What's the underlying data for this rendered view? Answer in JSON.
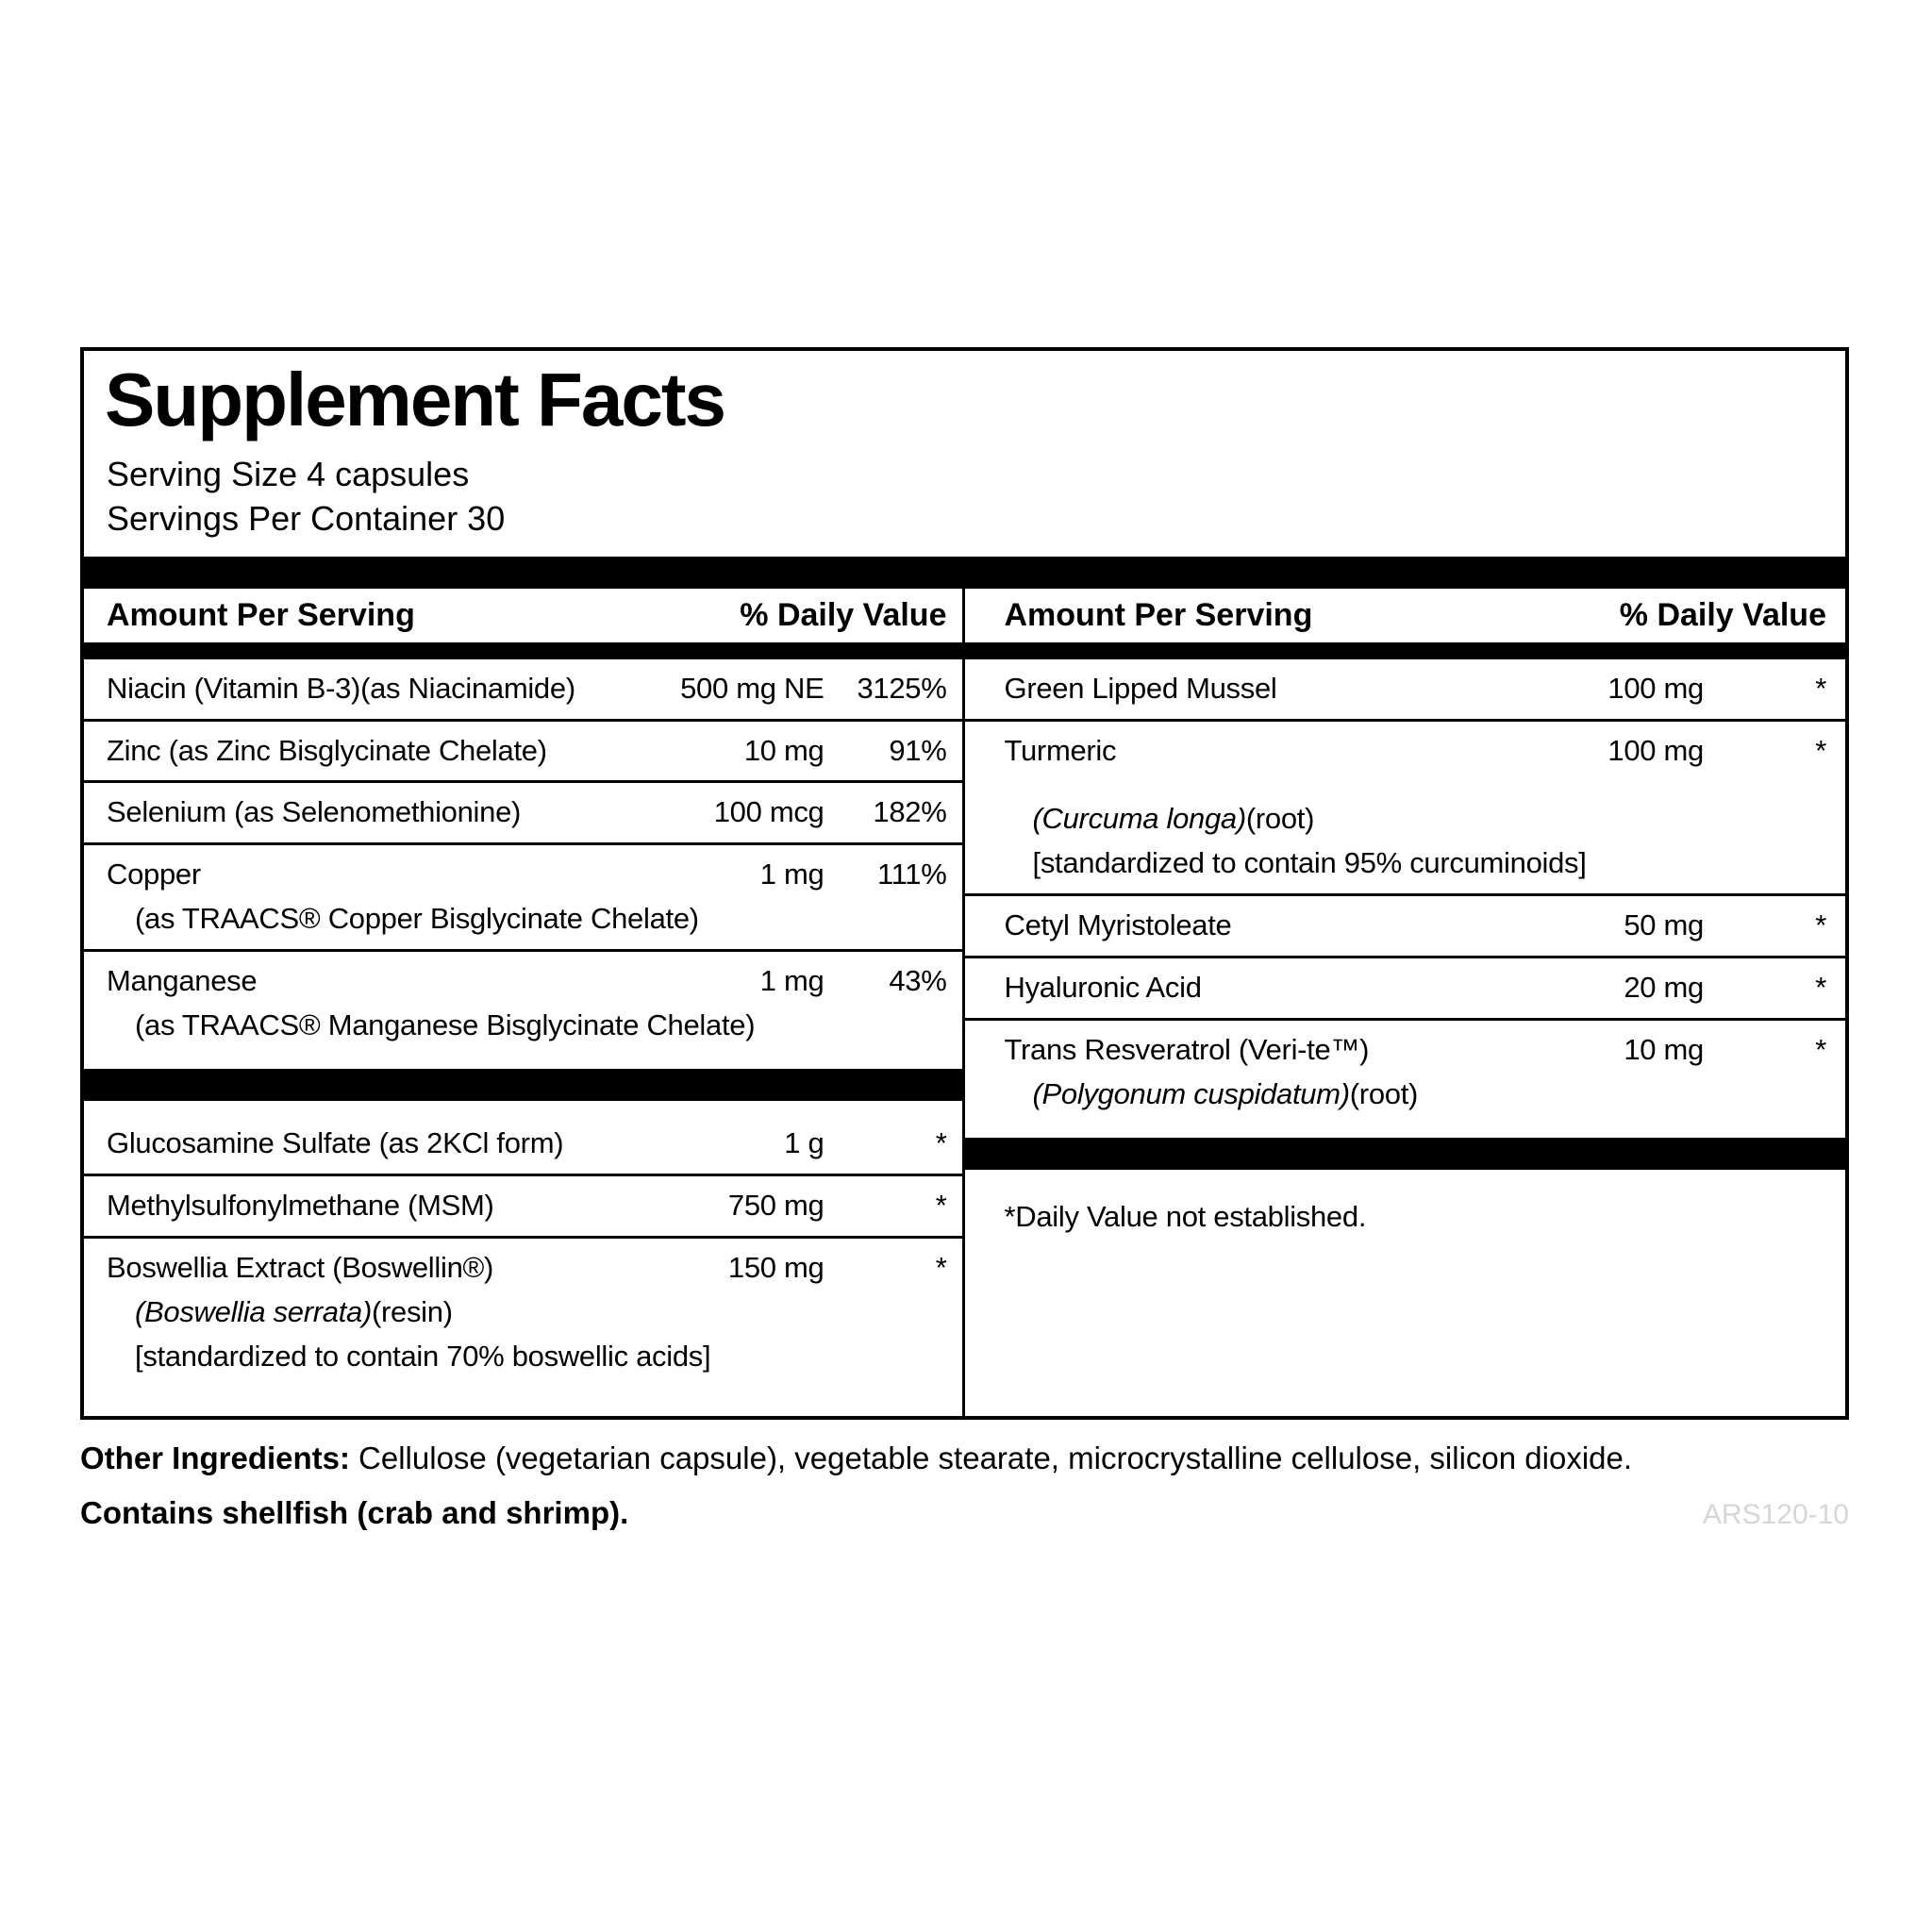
{
  "panel": {
    "title": "Supplement Facts",
    "serving_size": "Serving Size 4 capsules",
    "servings_per_container": "Servings Per Container 30",
    "left": {
      "header_amount": "Amount Per Serving",
      "header_dv": "% Daily Value",
      "rows": [
        {
          "name": "Niacin (Vitamin B-3)(as Niacinamide)",
          "amount": "500 mg NE",
          "dv": "3125%"
        },
        {
          "name": "Zinc (as Zinc Bisglycinate Chelate)",
          "amount": "10 mg",
          "dv": "91%"
        },
        {
          "name": "Selenium (as Selenomethionine)",
          "amount": "100 mcg",
          "dv": "182%"
        },
        {
          "name": "Copper",
          "amount": "1 mg",
          "dv": "111%",
          "sub1": "(as TRAACS® Copper Bisglycinate Chelate)"
        },
        {
          "name": "Manganese",
          "amount": "1 mg",
          "dv": "43%",
          "sub1": "(as TRAACS® Manganese Bisglycinate Chelate)"
        },
        {
          "name": "Glucosamine Sulfate (as 2KCl form)",
          "amount": "1 g",
          "dv": "*"
        },
        {
          "name": "Methylsulfonylmethane (MSM)",
          "amount": "750 mg",
          "dv": "*"
        },
        {
          "name": "Boswellia Extract (Boswellin®)",
          "amount": "150 mg",
          "dv": "*",
          "sub_italic": "(Boswellia serrata)",
          "sub_plain": "(resin)",
          "sub2": "[standardized to contain 70% boswellic acids]"
        }
      ]
    },
    "right": {
      "header_amount": "Amount Per Serving",
      "header_dv": "% Daily Value",
      "rows": [
        {
          "name": "Green Lipped Mussel",
          "amount": "100 mg",
          "dv": "*"
        },
        {
          "name": "Turmeric",
          "amount": "100 mg",
          "dv": "*",
          "sub_italic": "(Curcuma longa)",
          "sub_plain": "(root)",
          "sub2": "[standardized to contain 95% curcuminoids]"
        },
        {
          "name": "Cetyl Myristoleate",
          "amount": "50 mg",
          "dv": "*"
        },
        {
          "name": "Hyaluronic Acid",
          "amount": "20 mg",
          "dv": "*"
        },
        {
          "name": "Trans Resveratrol (Veri-te™)",
          "amount": "10 mg",
          "dv": "*",
          "sub_italic": "(Polygonum cuspidatum)",
          "sub_plain": "(root)"
        }
      ],
      "footnote": "*Daily Value not established."
    }
  },
  "footer": {
    "other_ingredients_label": "Other Ingredients:",
    "other_ingredients_text": "Cellulose (vegetarian capsule), vegetable stearate, microcrystalline cellulose, silicon dioxide.",
    "contains": "Contains shellfish (crab and shrimp).",
    "code": "ARS120-10"
  },
  "colors": {
    "text": "#000000",
    "bar": "#000000",
    "code_gray": "#d6d6d6"
  }
}
